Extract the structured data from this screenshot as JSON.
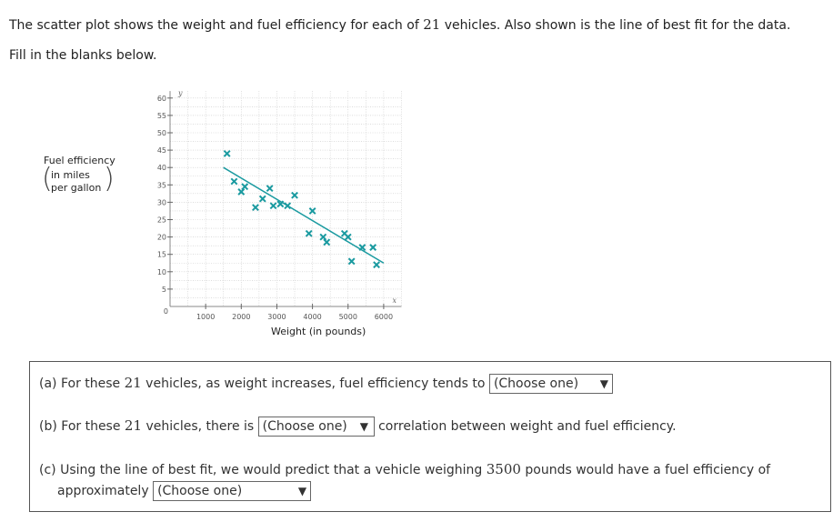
{
  "intro": {
    "before": "The scatter plot shows the weight and fuel efficiency for each of ",
    "count": "21",
    "after": " vehicles. Also shown is the line of best fit for the data."
  },
  "fill_prompt": "Fill in the blanks below.",
  "chart_data": {
    "type": "scatter",
    "ylabel": {
      "line1": "Fuel efficiency",
      "line2": "in miles",
      "line3": "per gallon"
    },
    "xlabel": "Weight (in pounds)",
    "x_axis_symbol": "x",
    "y_axis_symbol": "y",
    "xlim": [
      0,
      6500
    ],
    "ylim": [
      0,
      62
    ],
    "xticks": [
      1000,
      2000,
      3000,
      4000,
      5000,
      6000
    ],
    "xtick_labels": [
      "1000",
      "2000",
      "3000",
      "4000",
      "5000",
      "6000"
    ],
    "yticks": [
      5,
      10,
      15,
      20,
      25,
      30,
      35,
      40,
      45,
      50,
      55,
      60
    ],
    "ytick_labels": [
      "5",
      "10",
      "15",
      "20",
      "25",
      "30",
      "35",
      "40",
      "45",
      "50",
      "55",
      "60"
    ],
    "origin_label": "0",
    "grid": true,
    "marker": "x",
    "color": "#1a9aa0",
    "points": [
      {
        "x": 1600,
        "y": 44
      },
      {
        "x": 1800,
        "y": 36
      },
      {
        "x": 2000,
        "y": 33
      },
      {
        "x": 2100,
        "y": 34.5
      },
      {
        "x": 2400,
        "y": 28.5
      },
      {
        "x": 2600,
        "y": 31
      },
      {
        "x": 2800,
        "y": 34
      },
      {
        "x": 2900,
        "y": 29
      },
      {
        "x": 3100,
        "y": 29.5
      },
      {
        "x": 3300,
        "y": 29
      },
      {
        "x": 3500,
        "y": 32
      },
      {
        "x": 3900,
        "y": 21
      },
      {
        "x": 4000,
        "y": 27.5
      },
      {
        "x": 4300,
        "y": 20
      },
      {
        "x": 4400,
        "y": 18.5
      },
      {
        "x": 4900,
        "y": 21
      },
      {
        "x": 5000,
        "y": 20
      },
      {
        "x": 5100,
        "y": 13
      },
      {
        "x": 5400,
        "y": 17
      },
      {
        "x": 5800,
        "y": 12
      },
      {
        "x": 5700,
        "y": 17
      }
    ],
    "fit_line": {
      "x": [
        1500,
        6000
      ],
      "y": [
        40,
        12.5
      ]
    }
  },
  "questions": {
    "a": {
      "before": "(a) For these ",
      "count": "21",
      "after": " vehicles, as weight increases, fuel efficiency tends to",
      "select": "(Choose one)"
    },
    "b": {
      "before": "(b) For these ",
      "count": "21",
      "after": " vehicles, there is",
      "select": "(Choose one)",
      "tail": "correlation between weight and fuel efficiency."
    },
    "c": {
      "before": "(c) Using the line of best fit, we would predict that a vehicle weighing ",
      "weight": "3500",
      "after": " pounds would have a fuel efficiency of",
      "line2": "approximately",
      "select": "(Choose one)"
    }
  }
}
